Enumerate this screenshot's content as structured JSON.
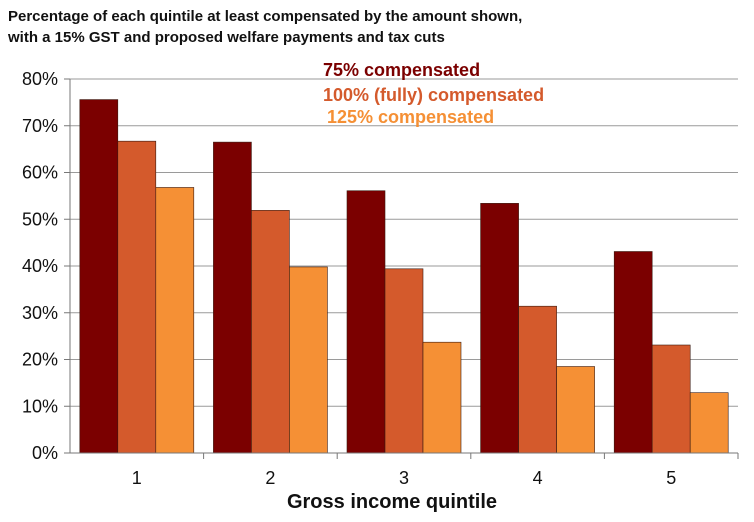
{
  "chart_data": {
    "type": "bar",
    "title_lines": [
      "Percentage of each quintile at least compensated by the amount shown,",
      "with a 15% GST and proposed welfare payments and tax cuts"
    ],
    "xlabel": "Gross income quintile",
    "ylabel": "",
    "categories": [
      "1",
      "2",
      "3",
      "4",
      "5"
    ],
    "ylim": [
      0,
      80
    ],
    "yticks": [
      "0%",
      "10%",
      "20%",
      "30%",
      "40%",
      "50%",
      "60%",
      "70%",
      "80%"
    ],
    "ytick_values": [
      0,
      10,
      20,
      30,
      40,
      50,
      60,
      70,
      80
    ],
    "grid": true,
    "legend_position": "top-center",
    "series": [
      {
        "name": "75% compensated",
        "color": "#7b0000",
        "values": [
          75.6,
          66.5,
          56.1,
          53.4,
          43.1
        ]
      },
      {
        "name": "100% (fully) compensated",
        "color": "#d45a2c",
        "values": [
          66.7,
          51.9,
          39.4,
          31.4,
          23.1
        ]
      },
      {
        "name": "125% compensated",
        "color": "#f59035",
        "values": [
          56.8,
          39.8,
          23.7,
          18.5,
          12.9
        ]
      }
    ]
  }
}
